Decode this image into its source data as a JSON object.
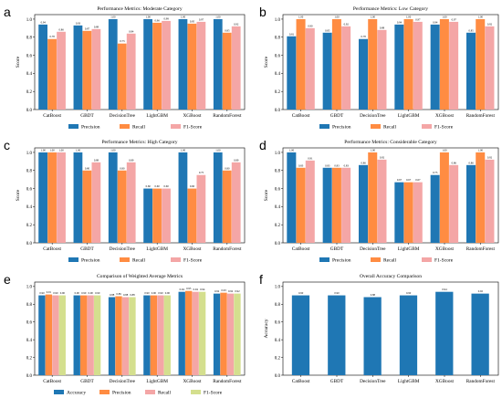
{
  "chart_data": [
    {
      "letter": "a",
      "type": "bar",
      "title": "Performance Metrics: Moderate Category",
      "ylabel": "Score",
      "ylim": [
        0,
        1.05
      ],
      "yticks": [
        "0.0",
        "0.2",
        "0.4",
        "0.6",
        "0.8",
        "1.0"
      ],
      "categories": [
        "CatBoost",
        "GBDT",
        "DecisionTree",
        "LightGBM",
        "XGBoost",
        "RandomForest"
      ],
      "series": [
        {
          "name": "Precision",
          "values": [
            0.94,
            0.93,
            1.0,
            1.0,
            1.0,
            1.0
          ]
        },
        {
          "name": "Recall",
          "values": [
            0.78,
            0.87,
            0.73,
            0.96,
            0.95,
            0.85
          ]
        },
        {
          "name": "F1-Score",
          "values": [
            0.86,
            0.89,
            0.84,
            0.98,
            0.97,
            0.92
          ]
        }
      ],
      "colors": [
        "#1f77b4",
        "#ff8c42",
        "#f4a6a6"
      ],
      "legend": "bottom"
    },
    {
      "letter": "b",
      "type": "bar",
      "title": "Performance Metrics: Low Category",
      "ylabel": "Score",
      "ylim": [
        0,
        1.05
      ],
      "yticks": [
        "0.0",
        "0.2",
        "0.4",
        "0.6",
        "0.8",
        "1.0"
      ],
      "categories": [
        "CatBoost",
        "GBDT",
        "DecisionTree",
        "LightGBM",
        "XGBoost",
        "RandomForest"
      ],
      "series": [
        {
          "name": "Precision",
          "values": [
            0.81,
            0.85,
            0.78,
            0.94,
            0.94,
            0.85
          ]
        },
        {
          "name": "Recall",
          "values": [
            1.0,
            1.0,
            1.0,
            1.0,
            1.0,
            1.0
          ]
        },
        {
          "name": "F1-Score",
          "values": [
            0.9,
            0.92,
            0.88,
            0.97,
            0.97,
            0.92
          ]
        }
      ],
      "colors": [
        "#1f77b4",
        "#ff8c42",
        "#f4a6a6"
      ],
      "legend": "bottom"
    },
    {
      "letter": "c",
      "type": "bar",
      "title": "Performance Metrics: High Category",
      "ylabel": "Score",
      "ylim": [
        0,
        1.05
      ],
      "yticks": [
        "0.0",
        "0.2",
        "0.4",
        "0.6",
        "0.8",
        "1.0"
      ],
      "categories": [
        "CatBoost",
        "GBDT",
        "DecisionTree",
        "LightGBM",
        "XGBoost",
        "RandomForest"
      ],
      "series": [
        {
          "name": "Precision",
          "values": [
            1.0,
            1.0,
            1.0,
            0.6,
            1.0,
            1.0
          ]
        },
        {
          "name": "Recall",
          "values": [
            1.0,
            0.8,
            0.8,
            0.6,
            0.6,
            0.8
          ]
        },
        {
          "name": "F1-Score",
          "values": [
            1.0,
            0.89,
            0.89,
            0.6,
            0.75,
            0.89
          ]
        }
      ],
      "colors": [
        "#1f77b4",
        "#ff8c42",
        "#f4a6a6"
      ],
      "legend": "bottom"
    },
    {
      "letter": "d",
      "type": "bar",
      "title": "Performance Metrics: Considerable Category",
      "ylabel": "Score",
      "ylim": [
        0,
        1.05
      ],
      "yticks": [
        "0.0",
        "0.2",
        "0.4",
        "0.6",
        "0.8",
        "1.0"
      ],
      "categories": [
        "CatBoost",
        "GBDT",
        "DecisionTree",
        "LightGBM",
        "XGBoost",
        "RandomForest"
      ],
      "series": [
        {
          "name": "Precision",
          "values": [
            1.0,
            0.83,
            0.86,
            0.67,
            0.75,
            0.86
          ]
        },
        {
          "name": "Recall",
          "values": [
            0.83,
            0.83,
            1.0,
            0.67,
            1.0,
            1.0
          ]
        },
        {
          "name": "F1-Score",
          "values": [
            0.91,
            0.83,
            0.92,
            0.67,
            0.86,
            0.92
          ]
        }
      ],
      "colors": [
        "#1f77b4",
        "#ff8c42",
        "#f4a6a6"
      ],
      "legend": "bottom"
    },
    {
      "letter": "e",
      "type": "bar",
      "title": "Comparison of Weighted Average Metrics",
      "ylabel": "",
      "ylim": [
        0,
        1.05
      ],
      "yticks": [
        "0.0",
        "0.2",
        "0.4",
        "0.6",
        "0.8",
        "1.0"
      ],
      "categories": [
        "CatBoost",
        "GBDT",
        "DecisionTree",
        "LightGBM",
        "XGBoost",
        "RandomForest"
      ],
      "series": [
        {
          "name": "Accuracy",
          "values": [
            0.9,
            0.9,
            0.88,
            0.9,
            0.94,
            0.92
          ]
        },
        {
          "name": "Precision",
          "values": [
            0.91,
            0.9,
            0.89,
            0.9,
            0.95,
            0.93
          ]
        },
        {
          "name": "Recall",
          "values": [
            0.9,
            0.9,
            0.88,
            0.9,
            0.94,
            0.92
          ]
        },
        {
          "name": "F1-Score",
          "values": [
            0.9,
            0.9,
            0.88,
            0.9,
            0.94,
            0.92
          ]
        }
      ],
      "colors": [
        "#1f77b4",
        "#ff8c42",
        "#f4a6a6",
        "#d4df8e"
      ],
      "legend": "bottom"
    },
    {
      "letter": "f",
      "type": "bar",
      "title": "Overall Accuracy Comparison",
      "ylabel": "Accuracy",
      "ylim": [
        0,
        1.05
      ],
      "yticks": [
        "0.0",
        "0.2",
        "0.4",
        "0.6",
        "0.8",
        "1.0"
      ],
      "categories": [
        "CatBoost",
        "GBDT",
        "DecisionTree",
        "LightGBM",
        "XGBoost",
        "RandomForest"
      ],
      "series": [
        {
          "name": "Accuracy",
          "values": [
            0.9,
            0.9,
            0.88,
            0.9,
            0.94,
            0.92
          ]
        }
      ],
      "colors": [
        "#1f77b4"
      ],
      "legend": "none"
    }
  ]
}
